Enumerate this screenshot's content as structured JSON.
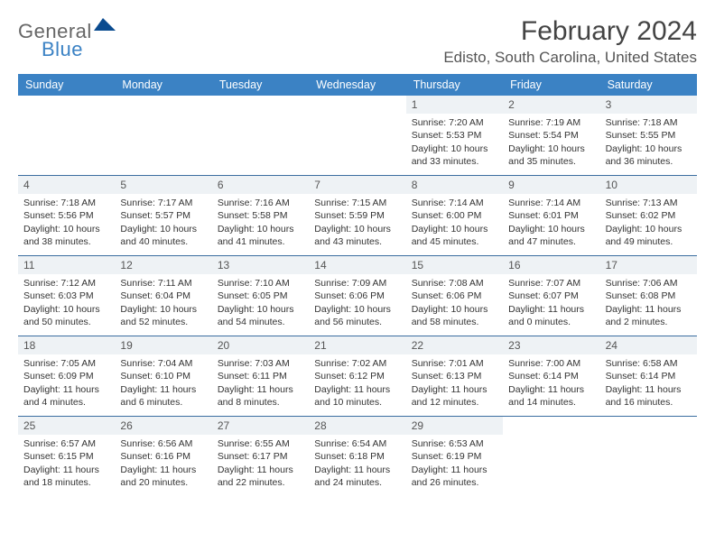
{
  "brand": {
    "word1": "General",
    "word2": "Blue"
  },
  "title": "February 2024",
  "location": "Edisto, South Carolina, United States",
  "colors": {
    "header_bg": "#3b82c4",
    "header_text": "#ffffff",
    "week_divider": "#3b6ea0",
    "daynum_bg": "#eef2f5",
    "logo_gray": "#666666",
    "logo_blue": "#3b82c4",
    "logo_triangle": "#0a4b8f"
  },
  "day_names": [
    "Sunday",
    "Monday",
    "Tuesday",
    "Wednesday",
    "Thursday",
    "Friday",
    "Saturday"
  ],
  "weeks": [
    [
      {
        "n": "",
        "empty": true
      },
      {
        "n": "",
        "empty": true
      },
      {
        "n": "",
        "empty": true
      },
      {
        "n": "",
        "empty": true
      },
      {
        "n": "1",
        "sunrise": "7:20 AM",
        "sunset": "5:53 PM",
        "daylight": "10 hours and 33 minutes."
      },
      {
        "n": "2",
        "sunrise": "7:19 AM",
        "sunset": "5:54 PM",
        "daylight": "10 hours and 35 minutes."
      },
      {
        "n": "3",
        "sunrise": "7:18 AM",
        "sunset": "5:55 PM",
        "daylight": "10 hours and 36 minutes."
      }
    ],
    [
      {
        "n": "4",
        "sunrise": "7:18 AM",
        "sunset": "5:56 PM",
        "daylight": "10 hours and 38 minutes."
      },
      {
        "n": "5",
        "sunrise": "7:17 AM",
        "sunset": "5:57 PM",
        "daylight": "10 hours and 40 minutes."
      },
      {
        "n": "6",
        "sunrise": "7:16 AM",
        "sunset": "5:58 PM",
        "daylight": "10 hours and 41 minutes."
      },
      {
        "n": "7",
        "sunrise": "7:15 AM",
        "sunset": "5:59 PM",
        "daylight": "10 hours and 43 minutes."
      },
      {
        "n": "8",
        "sunrise": "7:14 AM",
        "sunset": "6:00 PM",
        "daylight": "10 hours and 45 minutes."
      },
      {
        "n": "9",
        "sunrise": "7:14 AM",
        "sunset": "6:01 PM",
        "daylight": "10 hours and 47 minutes."
      },
      {
        "n": "10",
        "sunrise": "7:13 AM",
        "sunset": "6:02 PM",
        "daylight": "10 hours and 49 minutes."
      }
    ],
    [
      {
        "n": "11",
        "sunrise": "7:12 AM",
        "sunset": "6:03 PM",
        "daylight": "10 hours and 50 minutes."
      },
      {
        "n": "12",
        "sunrise": "7:11 AM",
        "sunset": "6:04 PM",
        "daylight": "10 hours and 52 minutes."
      },
      {
        "n": "13",
        "sunrise": "7:10 AM",
        "sunset": "6:05 PM",
        "daylight": "10 hours and 54 minutes."
      },
      {
        "n": "14",
        "sunrise": "7:09 AM",
        "sunset": "6:06 PM",
        "daylight": "10 hours and 56 minutes."
      },
      {
        "n": "15",
        "sunrise": "7:08 AM",
        "sunset": "6:06 PM",
        "daylight": "10 hours and 58 minutes."
      },
      {
        "n": "16",
        "sunrise": "7:07 AM",
        "sunset": "6:07 PM",
        "daylight": "11 hours and 0 minutes."
      },
      {
        "n": "17",
        "sunrise": "7:06 AM",
        "sunset": "6:08 PM",
        "daylight": "11 hours and 2 minutes."
      }
    ],
    [
      {
        "n": "18",
        "sunrise": "7:05 AM",
        "sunset": "6:09 PM",
        "daylight": "11 hours and 4 minutes."
      },
      {
        "n": "19",
        "sunrise": "7:04 AM",
        "sunset": "6:10 PM",
        "daylight": "11 hours and 6 minutes."
      },
      {
        "n": "20",
        "sunrise": "7:03 AM",
        "sunset": "6:11 PM",
        "daylight": "11 hours and 8 minutes."
      },
      {
        "n": "21",
        "sunrise": "7:02 AM",
        "sunset": "6:12 PM",
        "daylight": "11 hours and 10 minutes."
      },
      {
        "n": "22",
        "sunrise": "7:01 AM",
        "sunset": "6:13 PM",
        "daylight": "11 hours and 12 minutes."
      },
      {
        "n": "23",
        "sunrise": "7:00 AM",
        "sunset": "6:14 PM",
        "daylight": "11 hours and 14 minutes."
      },
      {
        "n": "24",
        "sunrise": "6:58 AM",
        "sunset": "6:14 PM",
        "daylight": "11 hours and 16 minutes."
      }
    ],
    [
      {
        "n": "25",
        "sunrise": "6:57 AM",
        "sunset": "6:15 PM",
        "daylight": "11 hours and 18 minutes."
      },
      {
        "n": "26",
        "sunrise": "6:56 AM",
        "sunset": "6:16 PM",
        "daylight": "11 hours and 20 minutes."
      },
      {
        "n": "27",
        "sunrise": "6:55 AM",
        "sunset": "6:17 PM",
        "daylight": "11 hours and 22 minutes."
      },
      {
        "n": "28",
        "sunrise": "6:54 AM",
        "sunset": "6:18 PM",
        "daylight": "11 hours and 24 minutes."
      },
      {
        "n": "29",
        "sunrise": "6:53 AM",
        "sunset": "6:19 PM",
        "daylight": "11 hours and 26 minutes."
      },
      {
        "n": "",
        "empty": true
      },
      {
        "n": "",
        "empty": true
      }
    ]
  ],
  "labels": {
    "sunrise": "Sunrise:",
    "sunset": "Sunset:",
    "daylight": "Daylight:"
  }
}
